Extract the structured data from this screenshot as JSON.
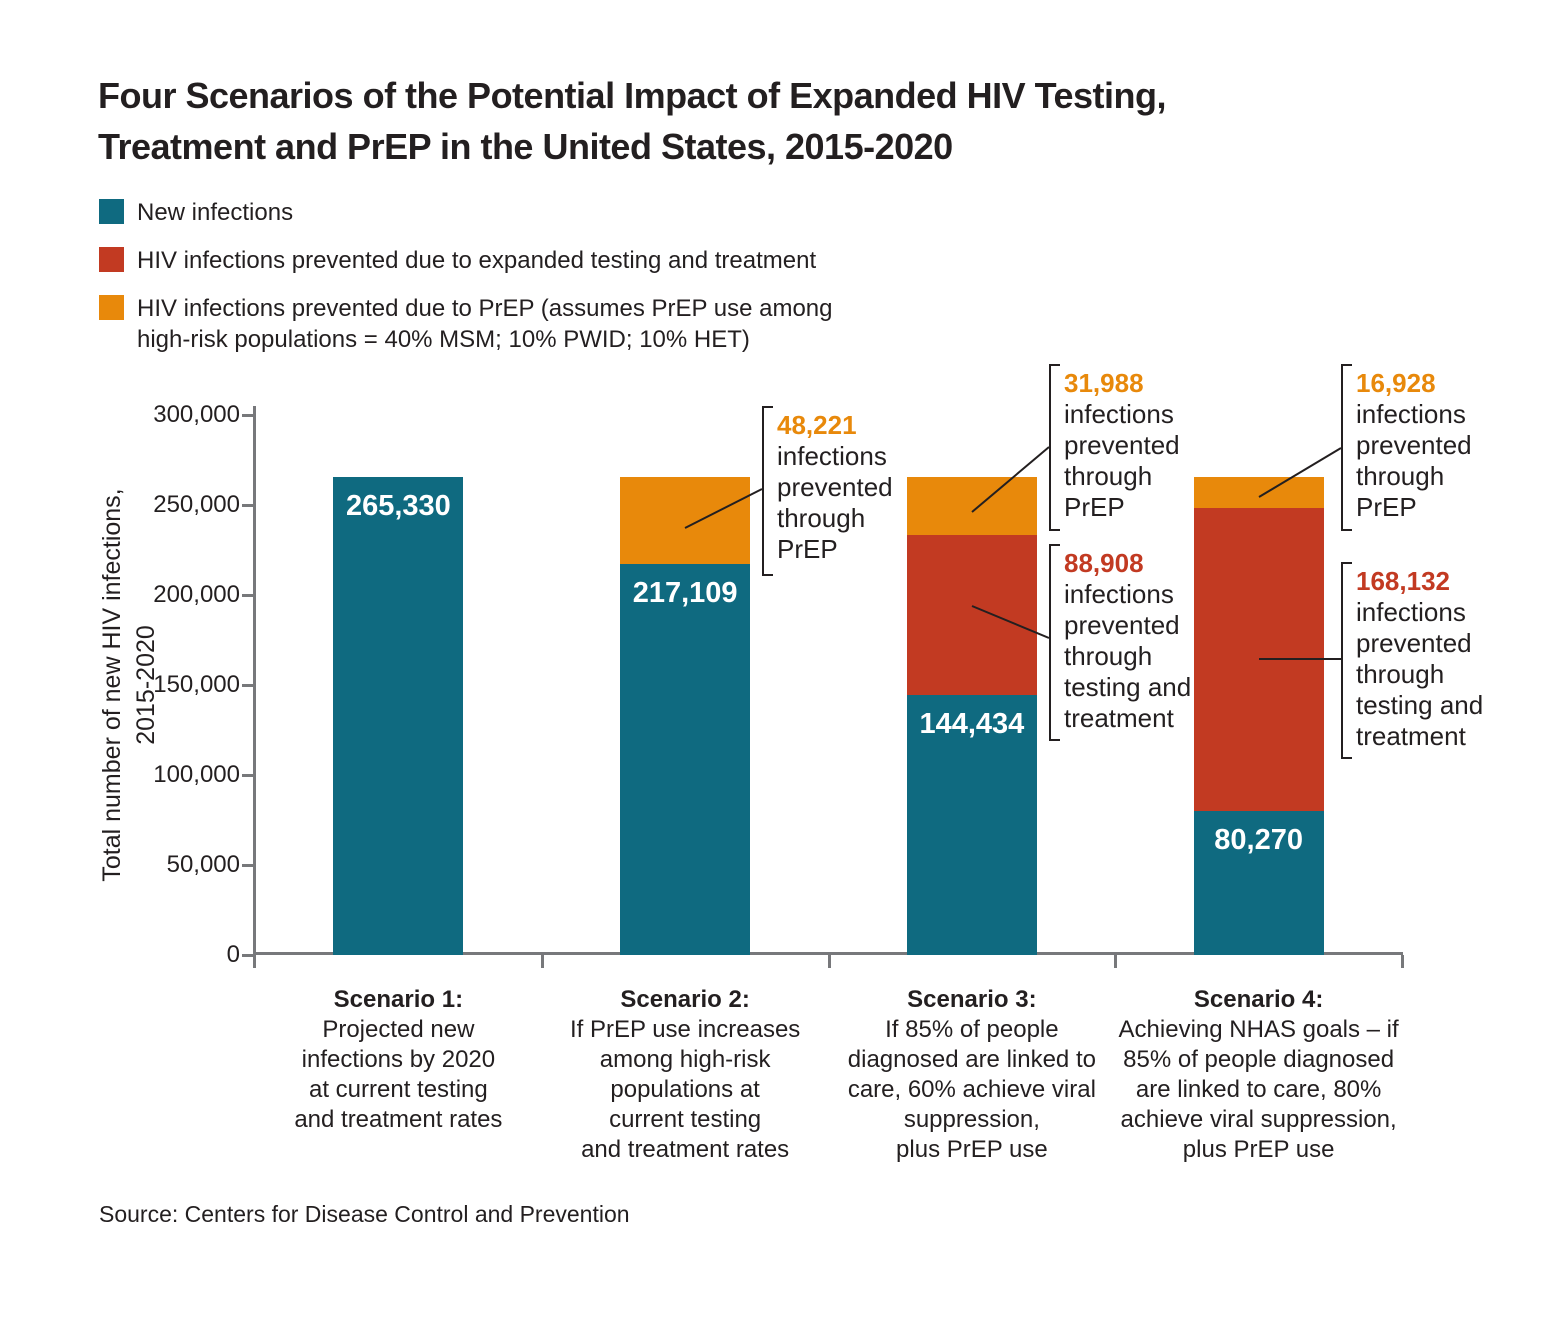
{
  "title_line1": "Four Scenarios of the Potential Impact of Expanded HIV Testing,",
  "title_line2": "Treatment and PrEP in the United States, 2015-2020",
  "source": "Source: Centers for Disease Control and Prevention",
  "colors": {
    "teal": "#0F6A80",
    "red": "#C23A22",
    "orange": "#E8890B",
    "text": "#231F20",
    "axis": "#77787B",
    "bar_label": "#FFFFFF"
  },
  "legend": {
    "items": [
      {
        "series_key": "new_infections",
        "color": "#0F6A80",
        "lines": [
          "New infections"
        ]
      },
      {
        "series_key": "prevented_testing_treatment",
        "color": "#C23A22",
        "lines": [
          "HIV infections prevented due to expanded testing and treatment"
        ]
      },
      {
        "series_key": "prevented_prep",
        "color": "#E8890B",
        "lines": [
          "HIV infections prevented due to PrEP (assumes PrEP use among",
          "high-risk populations = 40% MSM; 10% PWID; 10% HET)"
        ]
      }
    ]
  },
  "chart_data": {
    "type": "bar",
    "stacked": true,
    "grid": false,
    "legend_position": "top-left",
    "title": "Four Scenarios of the Potential Impact of Expanded HIV Testing, Treatment and PrEP in the United States, 2015-2020",
    "ylabel": "Total number of new HIV infections, 2015-2020",
    "ylabel_line1": "Total number of new HIV infections,",
    "ylabel_line2": "2015-2020",
    "xlabel": "",
    "ylim": [
      0,
      300000
    ],
    "y_ticks": [
      0,
      50000,
      100000,
      150000,
      200000,
      250000,
      300000
    ],
    "y_tick_labels": [
      "0",
      "50,000",
      "100,000",
      "150,000",
      "200,000",
      "250,000",
      "300,000"
    ],
    "categories": [
      {
        "title": "Scenario 1:",
        "lines": [
          "Projected new",
          "infections by 2020",
          "at current testing",
          "and treatment rates"
        ]
      },
      {
        "title": "Scenario 2:",
        "lines": [
          "If PrEP use increases",
          "among high-risk",
          "populations at",
          "current testing",
          "and treatment rates"
        ]
      },
      {
        "title": "Scenario 3:",
        "lines": [
          "If 85% of people",
          "diagnosed are linked to",
          "care, 60% achieve viral",
          "suppression,",
          "plus PrEP use"
        ]
      },
      {
        "title": "Scenario 4:",
        "lines": [
          "Achieving NHAS goals – if",
          "85% of people diagnosed",
          "are linked to care, 80%",
          "achieve viral suppression,",
          "plus PrEP use"
        ]
      }
    ],
    "series": [
      {
        "key": "new_infections",
        "name": "New infections",
        "color": "#0F6A80",
        "values": [
          265330,
          217109,
          144434,
          80270
        ]
      },
      {
        "key": "prevented_testing_treatment",
        "name": "HIV infections prevented due to expanded testing and treatment",
        "color": "#C23A22",
        "values": [
          0,
          0,
          88908,
          168132
        ]
      },
      {
        "key": "prevented_prep",
        "name": "HIV infections prevented due to PrEP (assumes PrEP use among high-risk populations = 40% MSM; 10% PWID; 10% HET)",
        "color": "#E8890B",
        "values": [
          0,
          48221,
          31988,
          16928
        ]
      }
    ],
    "bar_value_labels": [
      "265,330",
      "217,109",
      "144,434",
      "80,270"
    ],
    "annotations": [
      {
        "id": "s2-prep",
        "bar": 2,
        "segment": "prevented_prep",
        "number": "48,221",
        "number_color": "#E8890B",
        "lines": [
          "infections",
          "prevented",
          "through",
          "PrEP"
        ]
      },
      {
        "id": "s3-prep",
        "bar": 3,
        "segment": "prevented_prep",
        "number": "31,988",
        "number_color": "#E8890B",
        "lines": [
          "infections",
          "prevented",
          "through",
          "PrEP"
        ]
      },
      {
        "id": "s3-tt",
        "bar": 3,
        "segment": "prevented_testing_treatment",
        "number": "88,908",
        "number_color": "#C23A22",
        "lines": [
          "infections",
          "prevented",
          "through",
          "testing and",
          "treatment"
        ]
      },
      {
        "id": "s4-prep",
        "bar": 4,
        "segment": "prevented_prep",
        "number": "16,928",
        "number_color": "#E8890B",
        "lines": [
          "infections",
          "prevented",
          "through",
          "PrEP"
        ]
      },
      {
        "id": "s4-tt",
        "bar": 4,
        "segment": "prevented_testing_treatment",
        "number": "168,132",
        "number_color": "#C23A22",
        "lines": [
          "infections",
          "prevented",
          "through",
          "testing and",
          "treatment"
        ]
      }
    ]
  }
}
